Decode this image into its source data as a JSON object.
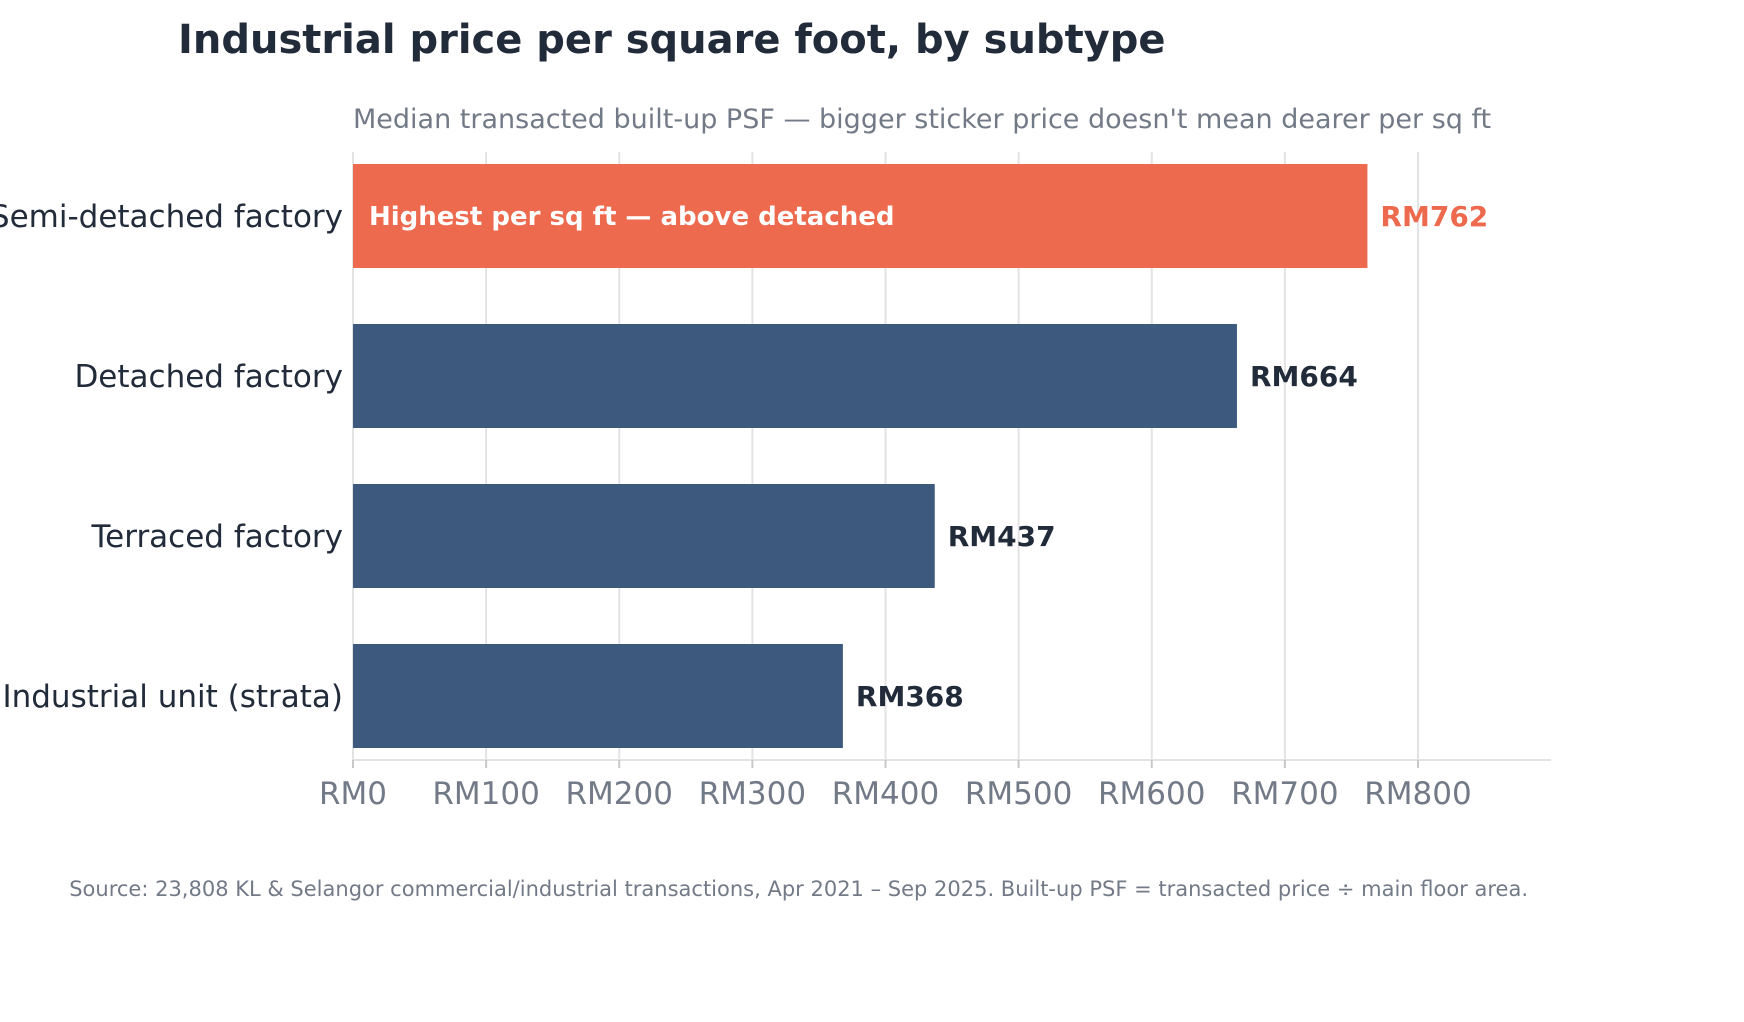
{
  "chart_data": {
    "type": "bar",
    "orientation": "horizontal",
    "title": "Industrial price per square foot, by subtype",
    "subtitle": "Median transacted built-up PSF — bigger sticker price doesn't mean dearer per sq ft",
    "categories": [
      "Semi-detached factory",
      "Detached factory",
      "Terraced factory",
      "Industrial unit (strata)"
    ],
    "values": [
      762,
      664,
      437,
      368
    ],
    "value_labels": [
      "RM762",
      "RM664",
      "RM437",
      "RM368"
    ],
    "highlight_index": 0,
    "annotation": "Highest per sq ft — above detached",
    "xlim": [
      0,
      900
    ],
    "xticks": [
      0,
      100,
      200,
      300,
      400,
      500,
      600,
      700,
      800
    ],
    "xtick_labels": [
      "RM0",
      "RM100",
      "RM200",
      "RM300",
      "RM400",
      "RM500",
      "RM600",
      "RM700",
      "RM800"
    ],
    "xlabel": "",
    "ylabel": "",
    "grid": true,
    "legend": "none",
    "source": "Source: 23,808 KL & Selangor commercial/industrial transactions, Apr 2021 – Sep 2025. Built-up PSF = transacted price ÷ main floor area.",
    "colors": {
      "bar": "#3d5a7e",
      "highlight": "#ed6a4e",
      "text": "#222b3a",
      "muted": "#737a87"
    }
  }
}
